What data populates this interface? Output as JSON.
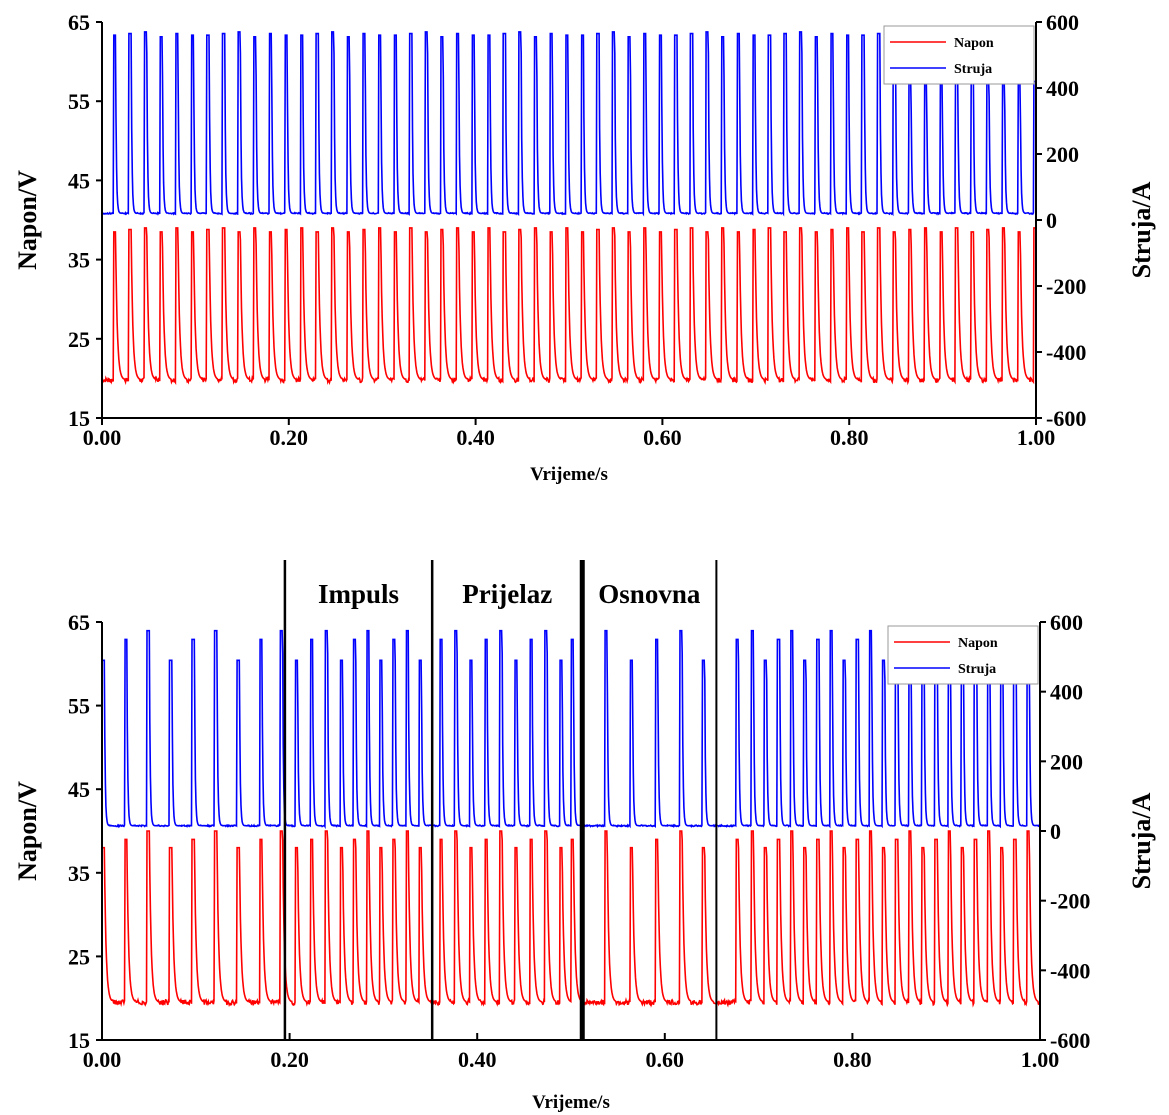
{
  "chart_data": [
    {
      "type": "line",
      "x_axis": {
        "label": "Vrijeme/s",
        "range": [
          0,
          1
        ],
        "ticks": [
          "0.00",
          "0.20",
          "0.40",
          "0.60",
          "0.80",
          "1.00"
        ]
      },
      "y_left": {
        "label": "Napon/V",
        "range": [
          15,
          65
        ],
        "ticks": [
          "15",
          "25",
          "35",
          "45",
          "55",
          "65"
        ]
      },
      "y_right": {
        "label": "Struja/A",
        "range": [
          -600,
          600
        ],
        "ticks": [
          "-600",
          "-400",
          "-200",
          "0",
          "200",
          "400",
          "600"
        ]
      },
      "legend": {
        "placement": "top-right",
        "entries": [
          "Napon",
          "Struja"
        ]
      },
      "series": [
        {
          "name": "Napon",
          "axis": "left",
          "color": "#ff0000",
          "baseline": 19.8,
          "peak_values": [
            38.5,
            38.8,
            39.0,
            38.5,
            39.0
          ],
          "pulse_count": 60,
          "pulse_period_s": 0.0167
        },
        {
          "name": "Struja",
          "axis": "right",
          "color": "#0000ff",
          "baseline": 20,
          "peak_values": [
            560,
            565,
            570,
            555,
            565,
            560
          ],
          "peak_values_late": [
            420
          ],
          "pulse_count": 60,
          "pulse_period_s": 0.0167
        }
      ],
      "regions": []
    },
    {
      "type": "line",
      "x_axis": {
        "label": "Vrijeme/s",
        "range": [
          0,
          1
        ],
        "ticks": [
          "0.00",
          "0.20",
          "0.40",
          "0.60",
          "0.80",
          "1.00"
        ]
      },
      "y_left": {
        "label": "Napon/V",
        "range": [
          15,
          65
        ],
        "ticks": [
          "15",
          "25",
          "35",
          "45",
          "55",
          "65"
        ]
      },
      "y_right": {
        "label": "Struja/A",
        "range": [
          -600,
          600
        ],
        "ticks": [
          "-600",
          "-400",
          "-200",
          "0",
          "200",
          "400",
          "600"
        ]
      },
      "legend": {
        "placement": "top-right",
        "entries": [
          "Napon",
          "Struja"
        ]
      },
      "series": [
        {
          "name": "Napon",
          "axis": "left",
          "color": "#ff0000",
          "baseline": 19.5,
          "peak_values": [
            38,
            39,
            40
          ],
          "pulse_times_s": [
            0.0,
            0.024,
            0.048,
            0.072,
            0.096,
            0.12,
            0.144,
            0.168,
            0.19,
            0.206,
            0.222,
            0.238,
            0.254,
            0.268,
            0.282,
            0.296,
            0.31,
            0.324,
            0.338,
            0.36,
            0.376,
            0.392,
            0.408,
            0.424,
            0.44,
            0.456,
            0.472,
            0.488,
            0.5,
            0.536,
            0.563,
            0.59,
            0.616,
            0.64,
            0.676,
            0.692,
            0.706,
            0.72,
            0.734,
            0.748,
            0.762,
            0.776,
            0.79,
            0.804,
            0.818,
            0.832,
            0.846,
            0.86,
            0.874,
            0.888,
            0.902,
            0.916,
            0.93,
            0.944,
            0.958,
            0.972,
            0.986
          ]
        },
        {
          "name": "Struja",
          "axis": "right",
          "color": "#0000ff",
          "baseline": 15,
          "peak_values": [
            490,
            550,
            575
          ],
          "pulse_times_s": [
            0.0,
            0.024,
            0.048,
            0.072,
            0.096,
            0.12,
            0.144,
            0.168,
            0.19,
            0.206,
            0.222,
            0.238,
            0.254,
            0.268,
            0.282,
            0.296,
            0.31,
            0.324,
            0.338,
            0.36,
            0.376,
            0.392,
            0.408,
            0.424,
            0.44,
            0.456,
            0.472,
            0.488,
            0.5,
            0.536,
            0.563,
            0.59,
            0.616,
            0.64,
            0.676,
            0.692,
            0.706,
            0.72,
            0.734,
            0.748,
            0.762,
            0.776,
            0.79,
            0.804,
            0.818,
            0.832,
            0.846,
            0.86,
            0.874,
            0.888,
            0.902,
            0.916,
            0.93,
            0.944,
            0.958,
            0.972,
            0.986
          ]
        }
      ],
      "regions": [
        {
          "label": "Impuls",
          "x_start": 0.195,
          "x_end": 0.352
        },
        {
          "label": "Prijelaz",
          "x_start": 0.352,
          "x_end": 0.512
        },
        {
          "label": "Osnovna",
          "x_start": 0.512,
          "x_end": 0.655
        }
      ]
    }
  ]
}
